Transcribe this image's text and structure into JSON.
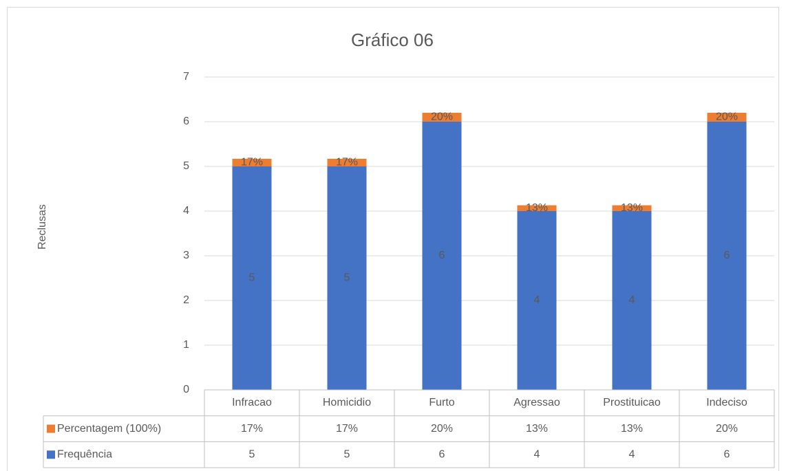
{
  "chart_data": {
    "type": "bar",
    "stacked": true,
    "title": "Gráfico 06",
    "y_label": "Reclusas",
    "categories": [
      "Infracao",
      "Homicidio",
      "Furto",
      "Agressao",
      "Prostituicao",
      "Indeciso"
    ],
    "series": [
      {
        "name": "Frequência",
        "color": "#4472c4",
        "values": [
          5,
          5,
          6,
          4,
          4,
          6
        ]
      },
      {
        "name": "Percentagem (100%)",
        "color": "#ed7d31",
        "values": [
          0.17,
          0.17,
          0.2,
          0.13,
          0.13,
          0.2
        ],
        "value_labels": [
          "17%",
          "17%",
          "20%",
          "13%",
          "13%",
          "20%"
        ]
      }
    ],
    "ylim": [
      0,
      7
    ],
    "yticks": [
      0,
      1,
      2,
      3,
      4,
      5,
      6,
      7
    ],
    "grid": true,
    "data_table": true
  }
}
